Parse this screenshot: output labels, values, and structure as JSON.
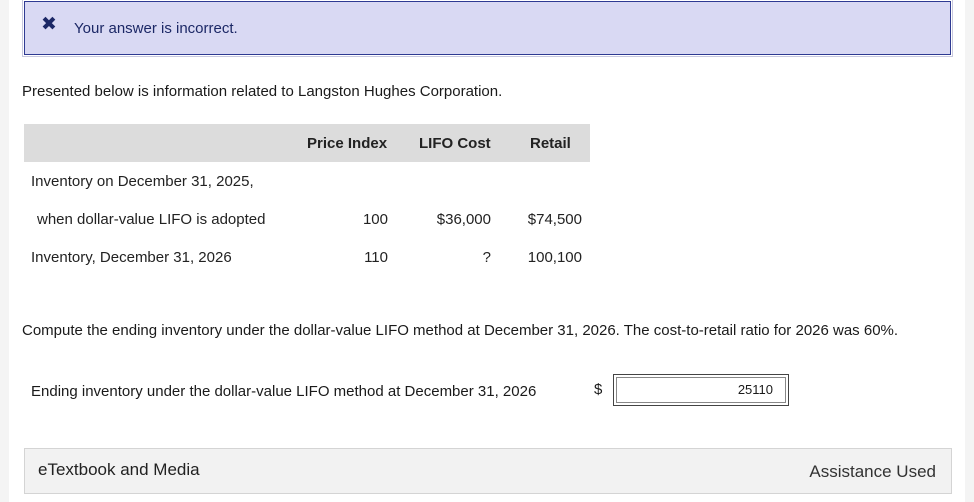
{
  "alert": {
    "icon": "close-icon",
    "glyph": "✖",
    "message": "Your answer is incorrect."
  },
  "intro": "Presented below is information related to Langston Hughes Corporation.",
  "table": {
    "headers": [
      "Price Index",
      "LIFO Cost",
      "Retail"
    ],
    "rows": [
      {
        "label": "Inventory on December 31, 2025,",
        "price_index": "",
        "lifo_cost": "",
        "retail": ""
      },
      {
        "label": "when dollar-value LIFO is adopted",
        "price_index": "100",
        "lifo_cost": "$36,000",
        "retail": "$74,500"
      },
      {
        "label": "Inventory, December 31, 2026",
        "price_index": "110",
        "lifo_cost": "?",
        "retail": "100,100"
      }
    ]
  },
  "question": "Compute the ending inventory under the dollar-value LIFO method at December 31, 2026. The cost-to-retail ratio for 2026 was 60%.",
  "answer": {
    "label": "Ending inventory under the dollar-value LIFO method at December 31, 2026",
    "currency": "$",
    "value": "25110"
  },
  "footer": {
    "etextbook_label": "eTextbook and Media",
    "assistance_label": "Assistance Used"
  },
  "colors": {
    "alert_bg": "#d9d9f3",
    "alert_border": "#2e3a92",
    "header_bg": "#dcdcdc"
  }
}
